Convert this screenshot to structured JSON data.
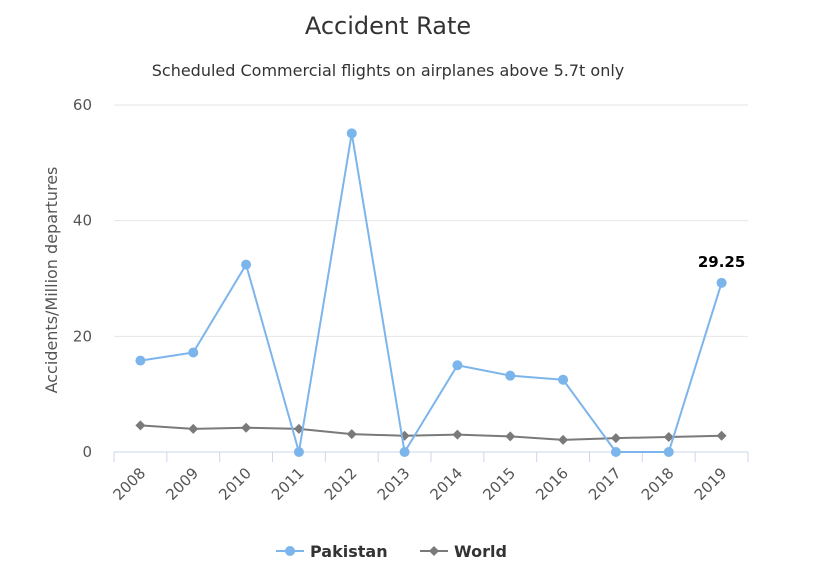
{
  "chart_data": {
    "type": "line",
    "title": "Accident Rate",
    "subtitle": "Scheduled Commercial flights on airplanes above 5.7t only",
    "xlabel": "",
    "ylabel": "Accidents/Million departures",
    "categories": [
      "2008",
      "2009",
      "2010",
      "2011",
      "2012",
      "2013",
      "2014",
      "2015",
      "2016",
      "2017",
      "2018",
      "2019"
    ],
    "ylim": [
      0,
      60
    ],
    "yticks": [
      "0",
      "20",
      "40",
      "60"
    ],
    "grid": true,
    "legend_position": "bottom-center",
    "series": [
      {
        "name": "Pakistan",
        "color": "#7cb5ec",
        "marker": "circle",
        "values": [
          15.8,
          17.2,
          32.4,
          0,
          55.1,
          0,
          15.0,
          13.2,
          12.5,
          0,
          0,
          29.25
        ],
        "data_labels": [
          null,
          null,
          null,
          null,
          null,
          null,
          null,
          null,
          null,
          null,
          null,
          "29.25"
        ]
      },
      {
        "name": "World",
        "color": "#7a7a7a",
        "marker": "diamond",
        "values": [
          4.6,
          4.0,
          4.2,
          4.0,
          3.1,
          2.8,
          3.0,
          2.7,
          2.1,
          2.4,
          2.6,
          2.8
        ]
      }
    ]
  }
}
